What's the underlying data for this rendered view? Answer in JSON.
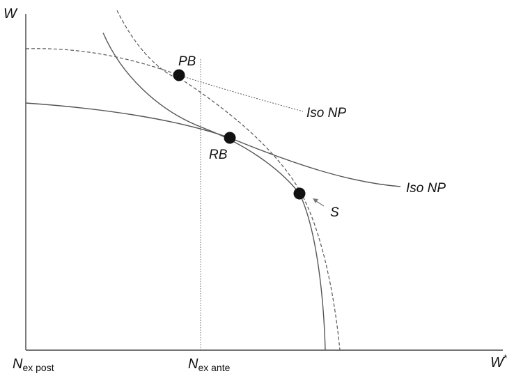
{
  "axes": {
    "y_label": "W",
    "x_label": "W",
    "x_label_superscript": "*",
    "origin_label": {
      "base": "N",
      "sub": "ex post"
    },
    "vline_label": {
      "base": "N",
      "sub": "ex ante"
    }
  },
  "points": {
    "pb": "PB",
    "rb": "RB",
    "s": "S"
  },
  "curves": {
    "iso_np_upper": "Iso NP",
    "iso_np_lower": "Iso NP"
  },
  "colors": {
    "solid": "#555555",
    "dashed": "#555555",
    "axis": "#222222",
    "point": "#111111",
    "arrow": "#777777"
  }
}
